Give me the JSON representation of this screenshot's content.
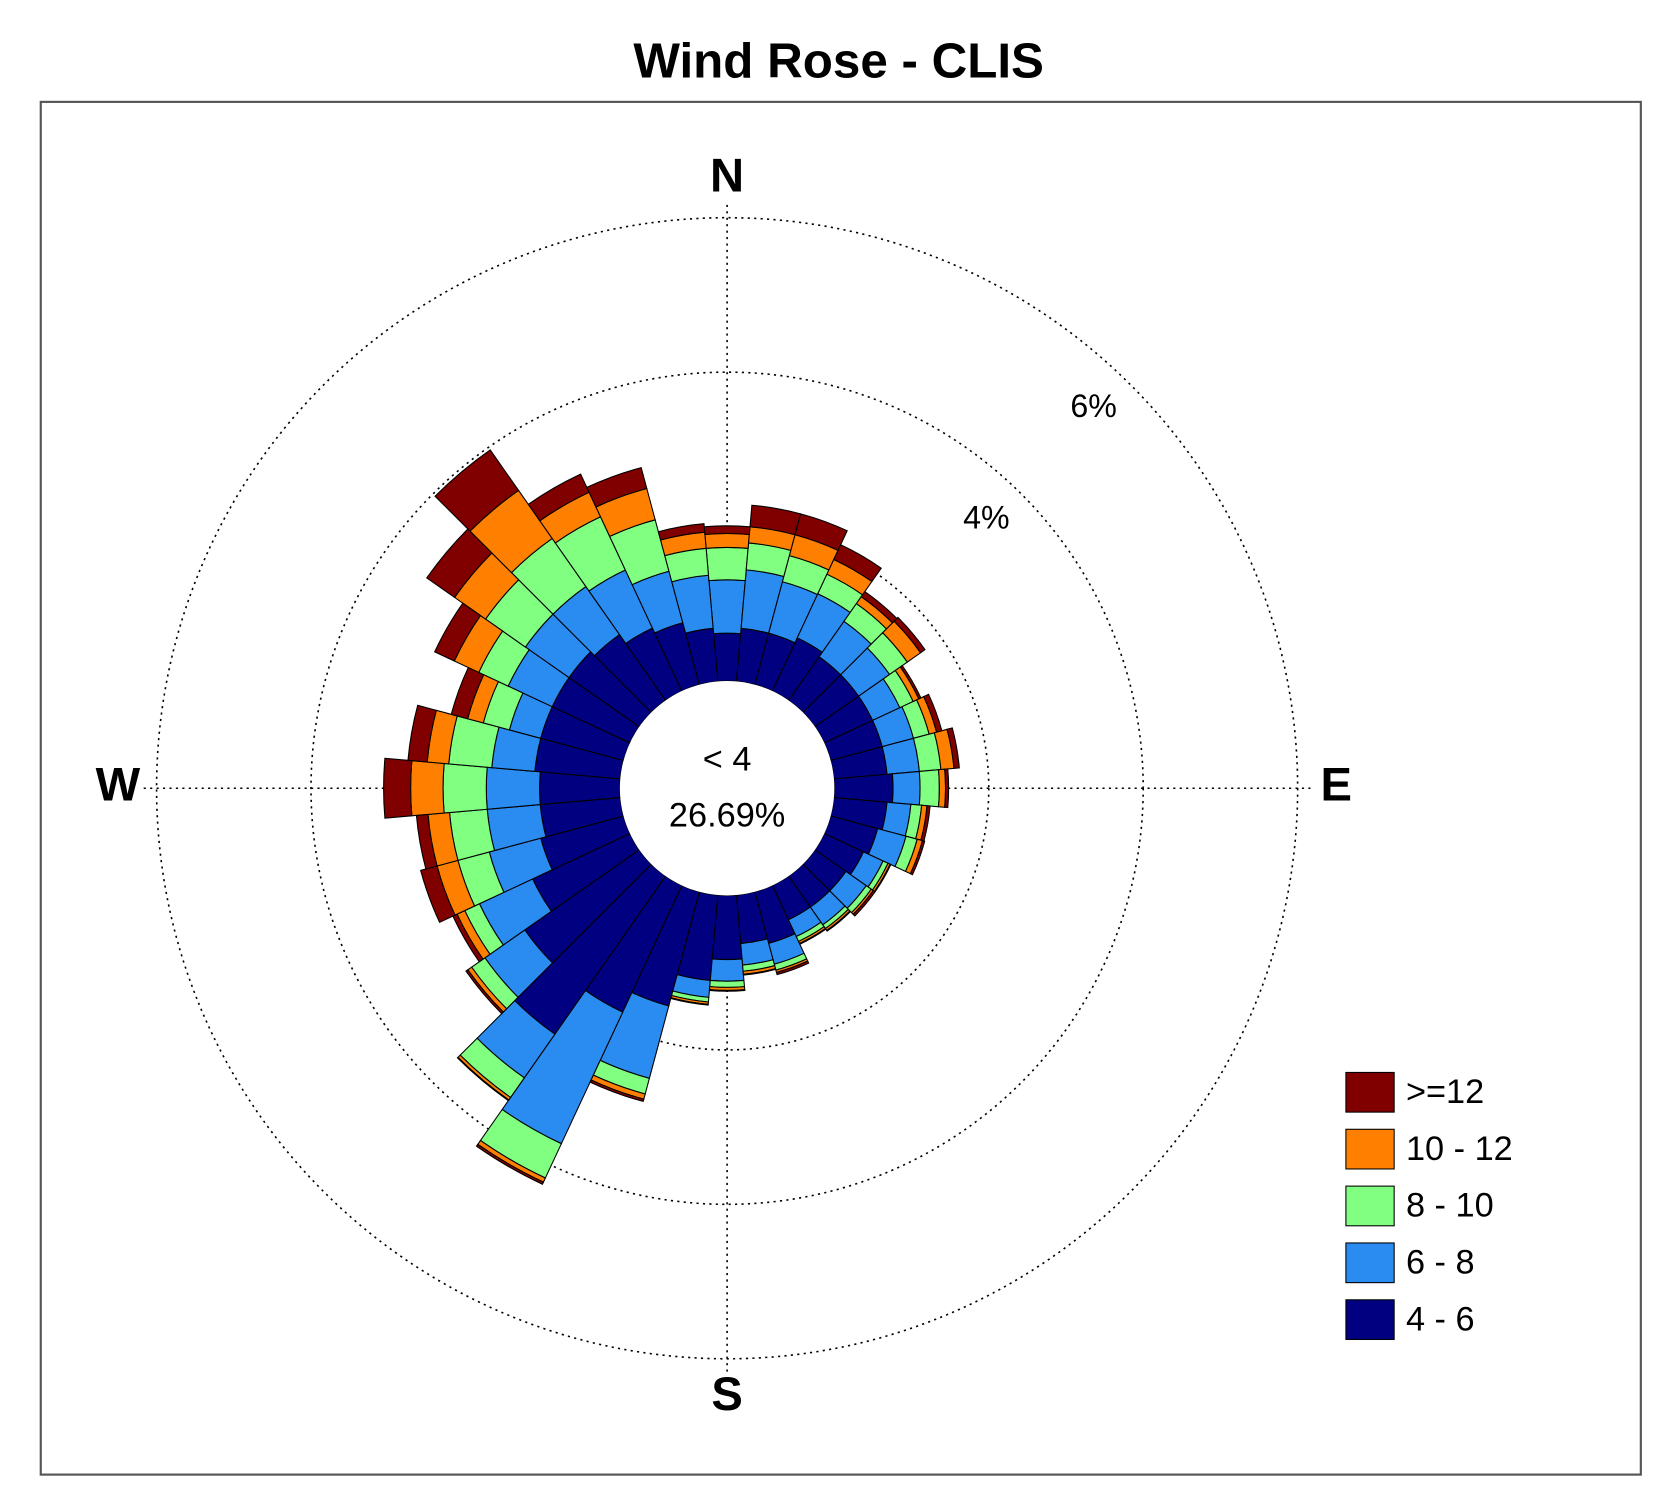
{
  "chart_data": {
    "type": "windrose",
    "title": "Wind Rose - CLIS",
    "directions": [
      0,
      10,
      20,
      30,
      40,
      50,
      60,
      70,
      80,
      90,
      100,
      110,
      120,
      130,
      140,
      150,
      160,
      170,
      180,
      190,
      200,
      210,
      220,
      230,
      240,
      250,
      260,
      270,
      280,
      290,
      300,
      310,
      320,
      330,
      340,
      350
    ],
    "compass": [
      "N",
      "E",
      "S",
      "W"
    ],
    "calm": {
      "label": "< 4",
      "value": 26.69,
      "value_label": "26.69%"
    },
    "rlim": [
      0,
      6
    ],
    "rticks": [
      {
        "value": 2,
        "label": null
      },
      {
        "value": 4,
        "label": "4%"
      },
      {
        "value": 6,
        "label": "6%"
      }
    ],
    "legend": "lower right",
    "series": [
      {
        "name": "4 - 6",
        "color": "#000080",
        "values": [
          0.62,
          0.69,
          0.69,
          0.76,
          0.69,
          0.69,
          0.69,
          0.69,
          0.69,
          0.76,
          0.69,
          0.63,
          0.56,
          0.49,
          0.49,
          0.49,
          0.69,
          0.63,
          0.83,
          1.11,
          1.53,
          1.81,
          2.5,
          1.81,
          1.39,
          1.11,
          1.04,
          1.04,
          1.11,
          1.11,
          1.11,
          1.11,
          1.04,
          0.9,
          0.83,
          0.69
        ]
      },
      {
        "name": "6 - 8",
        "color": "#2a8cf0",
        "values": [
          0.69,
          0.76,
          0.69,
          0.63,
          0.56,
          0.49,
          0.39,
          0.42,
          0.42,
          0.35,
          0.31,
          0.38,
          0.28,
          0.32,
          0.28,
          0.24,
          0.28,
          0.28,
          0.28,
          0.22,
          0.97,
          1.88,
          0.69,
          0.63,
          0.76,
          0.69,
          0.69,
          0.69,
          0.56,
          0.42,
          0.63,
          0.69,
          0.76,
          0.83,
          0.69,
          0.69
        ]
      },
      {
        "name": "8 - 10",
        "color": "#80ff80",
        "values": [
          0.42,
          0.35,
          0.35,
          0.28,
          0.28,
          0.28,
          0.19,
          0.21,
          0.28,
          0.25,
          0.14,
          0.15,
          0.07,
          0.08,
          0.06,
          0.07,
          0.08,
          0.08,
          0.08,
          0.06,
          0.21,
          0.49,
          0.31,
          0.21,
          0.21,
          0.42,
          0.49,
          0.56,
          0.56,
          0.35,
          0.42,
          0.63,
          0.76,
          0.76,
          0.69,
          0.35
        ]
      },
      {
        "name": "10 - 12",
        "color": "#ff8000",
        "values": [
          0.18,
          0.21,
          0.28,
          0.21,
          0.11,
          0.21,
          0.08,
          0.1,
          0.17,
          0.08,
          0.07,
          0.07,
          0.03,
          0.03,
          0.03,
          0.03,
          0.03,
          0.04,
          0.04,
          0.03,
          0.07,
          0.06,
          0.04,
          0.06,
          0.11,
          0.28,
          0.28,
          0.42,
          0.28,
          0.21,
          0.35,
          0.49,
          0.76,
          0.35,
          0.42,
          0.21
        ]
      },
      {
        "name": ">=12",
        "color": "#800000",
        "values": [
          0.1,
          0.28,
          0.28,
          0.21,
          0.08,
          0.07,
          0.03,
          0.07,
          0.07,
          0.04,
          0.04,
          0.03,
          0.01,
          0.03,
          0.01,
          0.01,
          0.03,
          0.01,
          0.01,
          0.01,
          0.03,
          0.03,
          0.01,
          0.03,
          0.06,
          0.22,
          0.15,
          0.35,
          0.25,
          0.22,
          0.28,
          0.44,
          0.64,
          0.26,
          0.28,
          0.11
        ]
      }
    ]
  }
}
